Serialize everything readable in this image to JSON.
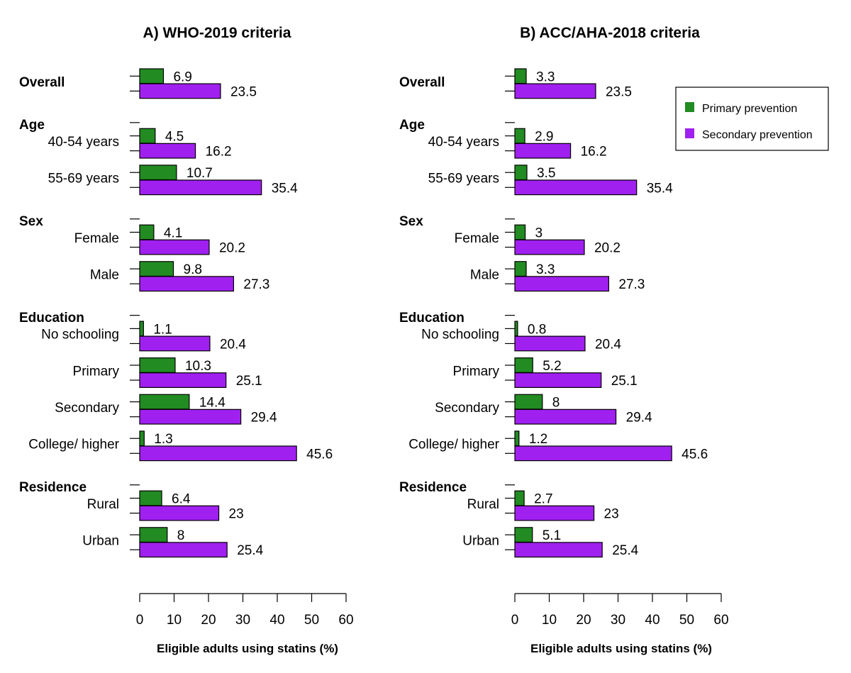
{
  "colors": {
    "primary": "#228B22",
    "secondary": "#A020F0",
    "axis": "#000000"
  },
  "legend": {
    "placement": "top-right of panel B",
    "primary_label": "Primary prevention",
    "secondary_label": "Secondary prevention"
  },
  "chart_data": [
    {
      "type": "bar",
      "orientation": "horizontal",
      "title": "A) WHO-2019 criteria",
      "xlabel": "Eligible adults using statins (%)",
      "xlim": [
        0,
        60
      ],
      "xticks": [
        0,
        10,
        20,
        30,
        40,
        50,
        60
      ],
      "groups": [
        {
          "label": "Overall",
          "rows": [
            {
              "label": "",
              "primary": 6.9,
              "secondary": 23.5
            }
          ]
        },
        {
          "label": "Age",
          "rows": [
            {
              "label": "40-54 years",
              "primary": 4.5,
              "secondary": 16.2
            },
            {
              "label": "55-69 years",
              "primary": 10.7,
              "secondary": 35.4
            }
          ]
        },
        {
          "label": "Sex",
          "rows": [
            {
              "label": "Female",
              "primary": 4.1,
              "secondary": 20.2
            },
            {
              "label": "Male",
              "primary": 9.8,
              "secondary": 27.3
            }
          ]
        },
        {
          "label": "Education",
          "rows": [
            {
              "label": "No schooling",
              "primary": 1.1,
              "secondary": 20.4
            },
            {
              "label": "Primary",
              "primary": 10.3,
              "secondary": 25.1
            },
            {
              "label": "Secondary",
              "primary": 14.4,
              "secondary": 29.4
            },
            {
              "label": "College/ higher",
              "primary": 1.3,
              "secondary": 45.6
            }
          ]
        },
        {
          "label": "Residence",
          "rows": [
            {
              "label": "Rural",
              "primary": 6.4,
              "secondary": 23
            },
            {
              "label": "Urban",
              "primary": 8,
              "secondary": 25.4
            }
          ]
        }
      ]
    },
    {
      "type": "bar",
      "orientation": "horizontal",
      "title": "B) ACC/AHA-2018 criteria",
      "xlabel": "Eligible adults using statins (%)",
      "xlim": [
        0,
        60
      ],
      "xticks": [
        0,
        10,
        20,
        30,
        40,
        50,
        60
      ],
      "groups": [
        {
          "label": "Overall",
          "rows": [
            {
              "label": "",
              "primary": 3.3,
              "secondary": 23.5
            }
          ]
        },
        {
          "label": "Age",
          "rows": [
            {
              "label": "40-54 years",
              "primary": 2.9,
              "secondary": 16.2
            },
            {
              "label": "55-69 years",
              "primary": 3.5,
              "secondary": 35.4
            }
          ]
        },
        {
          "label": "Sex",
          "rows": [
            {
              "label": "Female",
              "primary": 3,
              "secondary": 20.2
            },
            {
              "label": "Male",
              "primary": 3.3,
              "secondary": 27.3
            }
          ]
        },
        {
          "label": "Education",
          "rows": [
            {
              "label": "No schooling",
              "primary": 0.8,
              "secondary": 20.4
            },
            {
              "label": "Primary",
              "primary": 5.2,
              "secondary": 25.1
            },
            {
              "label": "Secondary",
              "primary": 8,
              "secondary": 29.4
            },
            {
              "label": "College/ higher",
              "primary": 1.2,
              "secondary": 45.6
            }
          ]
        },
        {
          "label": "Residence",
          "rows": [
            {
              "label": "Rural",
              "primary": 2.7,
              "secondary": 23
            },
            {
              "label": "Urban",
              "primary": 5.1,
              "secondary": 25.4
            }
          ]
        }
      ]
    }
  ]
}
